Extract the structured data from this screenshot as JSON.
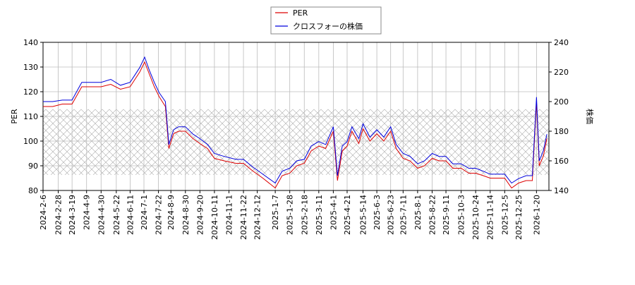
{
  "chart_data": {
    "type": "line",
    "ylabel": "PER",
    "y2label": "株価",
    "x": [
      "2024-2-6",
      "2024-2-20",
      "2024-3-5",
      "2024-3-19",
      "2024-4-2",
      "2024-4-16",
      "2024-4-30",
      "2024-5-14",
      "2024-5-28",
      "2024-6-11",
      "2024-6-25",
      "2024-7-2",
      "2024-7-9",
      "2024-7-16",
      "2024-7-23",
      "2024-8-1",
      "2024-8-6",
      "2024-8-13",
      "2024-8-20",
      "2024-8-30",
      "2024-9-10",
      "2024-9-20",
      "2024-10-1",
      "2024-10-11",
      "2024-10-25",
      "2024-11-11",
      "2024-11-22",
      "2024-12-5",
      "2024-12-20",
      "2025-1-7",
      "2025-1-17",
      "2025-1-28",
      "2025-2-7",
      "2025-2-18",
      "2025-2-28",
      "2025-3-11",
      "2025-3-21",
      "2025-4-1",
      "2025-4-7",
      "2025-4-14",
      "2025-4-21",
      "2025-4-28",
      "2025-5-8",
      "2025-5-14",
      "2025-5-24",
      "2025-6-3",
      "2025-6-13",
      "2025-6-23",
      "2025-7-1",
      "2025-7-11",
      "2025-7-21",
      "2025-8-1",
      "2025-8-11",
      "2025-8-22",
      "2025-9-1",
      "2025-9-11",
      "2025-9-21",
      "2025-10-3",
      "2025-10-14",
      "2025-10-24",
      "2025-11-4",
      "2025-11-14",
      "2025-11-24",
      "2025-12-5",
      "2025-12-15",
      "2025-12-25",
      "2026-1-5",
      "2026-1-14",
      "2026-1-20",
      "2026-1-24",
      "2026-1-30",
      "2026-2-4"
    ],
    "series": [
      {
        "name": "PER",
        "color": "#dd0000",
        "values": [
          114,
          114,
          115,
          115,
          122,
          122,
          122,
          123,
          121,
          122,
          128,
          132,
          127,
          122,
          118,
          114,
          97,
          103,
          104,
          104,
          101,
          99,
          97,
          93,
          92,
          91,
          91,
          88,
          85,
          81,
          86,
          87,
          90,
          91,
          96,
          98,
          97,
          104,
          84,
          96,
          98,
          104,
          99,
          105,
          100,
          103,
          100,
          104,
          97,
          93,
          92,
          89,
          90,
          93,
          92,
          92,
          89,
          89,
          87,
          87,
          86,
          85,
          85,
          85,
          81,
          83,
          84,
          84,
          116,
          90,
          94,
          101
        ]
      },
      {
        "name": "クロスフォーの株価",
        "color": "#0000dd",
        "axis": "y2",
        "values": [
          200,
          200,
          201,
          201,
          213,
          213,
          213,
          215,
          211,
          213,
          223,
          230,
          221,
          213,
          206,
          200,
          171,
          181,
          183,
          183,
          178,
          175,
          171,
          165,
          163,
          161,
          161,
          156,
          151,
          145,
          153,
          155,
          160,
          161,
          170,
          173,
          171,
          183,
          150,
          170,
          173,
          183,
          175,
          185,
          176,
          181,
          176,
          183,
          171,
          165,
          163,
          158,
          160,
          165,
          163,
          163,
          158,
          158,
          155,
          155,
          153,
          151,
          151,
          151,
          145,
          148,
          150,
          150,
          203,
          160,
          167,
          178
        ]
      }
    ],
    "xlim": [
      "2024-2-6",
      "2026-2-7"
    ],
    "xticks": [
      "2024-2-6",
      "2024-2-28",
      "2024-3-19",
      "2024-4-9",
      "2024-4-30",
      "2024-5-22",
      "2024-6-11",
      "2024-7-1",
      "2024-7-22",
      "2024-8-9",
      "2024-8-30",
      "2024-9-20",
      "2024-10-11",
      "2024-11-1",
      "2024-11-22",
      "2024-12-12",
      "2025-1-7",
      "2025-1-28",
      "2025-2-18",
      "2025-3-11",
      "2025-4-1",
      "2025-4-21",
      "2025-5-14",
      "2025-6-3",
      "2025-6-23",
      "2025-7-11",
      "2025-8-1",
      "2025-8-22",
      "2025-9-11",
      "2025-10-3",
      "2025-10-24",
      "2025-11-14",
      "2025-12-5",
      "2025-12-25",
      "2026-1-20"
    ],
    "ylim": [
      80,
      140
    ],
    "yticks": [
      80,
      90,
      100,
      110,
      120,
      130,
      140
    ],
    "y2lim": [
      140,
      240
    ],
    "y2ticks": [
      140,
      160,
      180,
      200,
      220,
      240
    ],
    "shaded_range": [
      86.3,
      112.9
    ],
    "grid": true,
    "legend": "top"
  }
}
